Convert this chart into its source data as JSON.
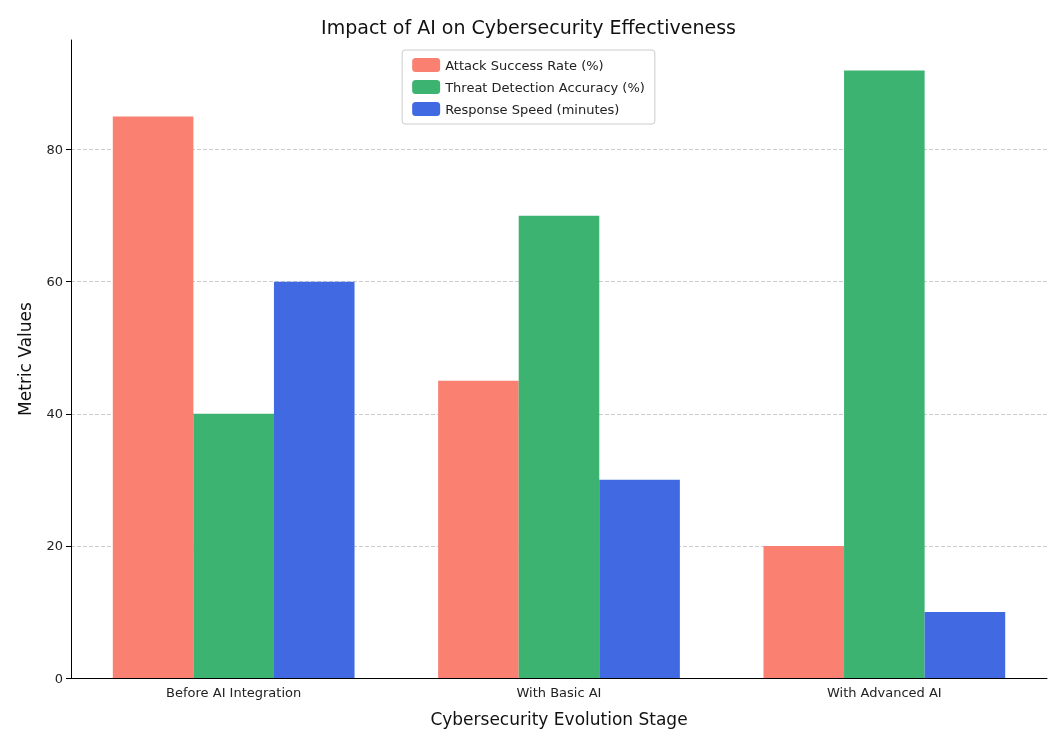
{
  "chart_data": {
    "type": "bar",
    "title": "Impact of AI on Cybersecurity Effectiveness",
    "xlabel": "Cybersecurity Evolution Stage",
    "ylabel": "Metric Values",
    "categories": [
      "Before AI Integration",
      "With Basic AI",
      "With Advanced AI"
    ],
    "series": [
      {
        "name": "Attack Success Rate (%)",
        "color": "#fa8072",
        "values": [
          85,
          45,
          20
        ]
      },
      {
        "name": "Threat Detection Accuracy (%)",
        "color": "#3cb371",
        "values": [
          40,
          70,
          92
        ]
      },
      {
        "name": "Response Speed (minutes)",
        "color": "#4169e1",
        "values": [
          60,
          30,
          10
        ]
      }
    ],
    "ylim": [
      0,
      96.6
    ],
    "yticks": [
      0,
      20,
      40,
      60,
      80
    ],
    "grid": "y",
    "legend": "top"
  }
}
